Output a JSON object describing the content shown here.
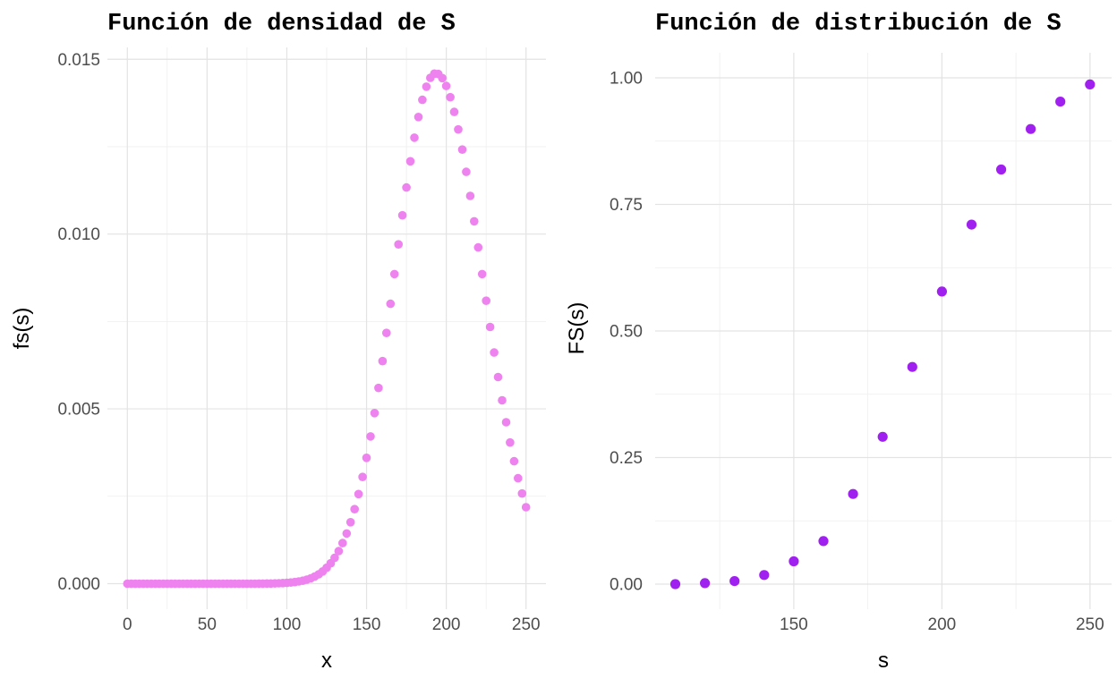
{
  "figure": {
    "background": "#ffffff",
    "grid_major_color": "#e3e3e3",
    "grid_minor_color": "#eeeeee",
    "tick_label_color": "#4d4d4d",
    "text_color": "#000000"
  },
  "chart_data": [
    {
      "type": "scatter",
      "title": "Función de densidad de S",
      "xlabel": "x",
      "ylabel": "fs(s)",
      "point_color": "#ee82ee",
      "legend": "none",
      "grid": "on",
      "x_ticks": [
        0,
        50,
        100,
        150,
        200,
        250
      ],
      "x_minor_ticks": [
        25,
        75,
        125,
        175,
        225
      ],
      "x_tick_labels": [
        "0",
        "50",
        "100",
        "150",
        "200",
        "250"
      ],
      "y_ticks": [
        0,
        0.005,
        0.01,
        0.015
      ],
      "y_minor_ticks": [
        0.0025,
        0.0075,
        0.0125
      ],
      "y_tick_labels": [
        "0.000",
        "0.005",
        "0.010",
        "0.015"
      ],
      "xlim": [
        -12.5,
        262.5
      ],
      "ylim": [
        -0.00073,
        0.01534
      ],
      "x": [
        0,
        2.5,
        5,
        7.5,
        10,
        12.5,
        15,
        17.5,
        20,
        22.5,
        25,
        27.5,
        30,
        32.5,
        35,
        37.5,
        40,
        42.5,
        45,
        47.5,
        50,
        52.5,
        55,
        57.5,
        60,
        62.5,
        65,
        67.5,
        70,
        72.5,
        75,
        77.5,
        80,
        82.5,
        85,
        87.5,
        90,
        92.5,
        95,
        97.5,
        100,
        102.5,
        105,
        107.5,
        110,
        112.5,
        115,
        117.5,
        120,
        122.5,
        125,
        127.5,
        130,
        132.5,
        135,
        137.5,
        140,
        142.5,
        145,
        147.5,
        150,
        152.5,
        155,
        157.5,
        160,
        162.5,
        165,
        167.5,
        170,
        172.5,
        175,
        177.5,
        180,
        182.5,
        185,
        187.5,
        190,
        192.5,
        195,
        197.5,
        200,
        202.5,
        205,
        207.5,
        210,
        212.5,
        215,
        217.5,
        220,
        222.5,
        225,
        227.5,
        230,
        232.5,
        235,
        237.5,
        240,
        242.5,
        245,
        247.5,
        250
      ],
      "y": [
        0,
        0,
        0,
        0,
        0,
        0,
        0,
        0,
        0,
        0,
        0,
        0,
        0,
        0,
        0,
        0,
        0,
        0,
        0,
        0,
        0,
        0,
        0,
        0,
        0,
        0,
        0,
        0,
        0,
        0,
        0,
        0,
        0,
        2e-06,
        3e-06,
        4e-06,
        5e-06,
        8e-06,
        1.1e-05,
        1.6e-05,
        2.3e-05,
        3.2e-05,
        4.5e-05,
        6.2e-05,
        8.4e-05,
        0.000114,
        0.000153,
        0.000204,
        0.000269,
        0.000351,
        0.000455,
        0.000582,
        0.00074,
        0.000931,
        0.001162,
        0.001435,
        0.001758,
        0.002132,
        0.002564,
        0.003053,
        0.0036,
        0.004212,
        0.004879,
        0.005598,
        0.006366,
        0.007172,
        0.008007,
        0.008855,
        0.009705,
        0.010537,
        0.011334,
        0.012082,
        0.012759,
        0.01335,
        0.013841,
        0.014216,
        0.014469,
        0.014589,
        0.01458,
        0.014462,
        0.014238,
        0.013914,
        0.013496,
        0.012994,
        0.012418,
        0.01178,
        0.011092,
        0.010366,
        0.009617,
        0.008855,
        0.008094,
        0.007343,
        0.006612,
        0.005911,
        0.005244,
        0.004618,
        0.004037,
        0.003503,
        0.003016,
        0.002579,
        0.002188
      ]
    },
    {
      "type": "scatter",
      "title": "Función de distribución de S",
      "xlabel": "s",
      "ylabel": "FS(s)",
      "point_color": "#a020f0",
      "legend": "none",
      "grid": "on",
      "x_ticks": [
        150,
        200,
        250
      ],
      "x_minor_ticks": [
        125,
        175,
        225
      ],
      "x_tick_labels": [
        "150",
        "200",
        "250"
      ],
      "y_ticks": [
        0,
        0.25,
        0.5,
        0.75,
        1
      ],
      "y_minor_ticks": [
        0.125,
        0.375,
        0.625,
        0.875
      ],
      "y_tick_labels": [
        "0.00",
        "0.25",
        "0.50",
        "0.75",
        "1.00"
      ],
      "xlim": [
        103.2,
        257.3
      ],
      "ylim": [
        -0.0495,
        1.0495
      ],
      "x": [
        110,
        120,
        130,
        140,
        150,
        160,
        170,
        180,
        190,
        200,
        210,
        220,
        230,
        240,
        250
      ],
      "y": [
        0.0,
        0.002,
        0.006,
        0.018,
        0.045,
        0.085,
        0.178,
        0.291,
        0.429,
        0.578,
        0.71,
        0.819,
        0.899,
        0.953,
        0.987
      ]
    }
  ]
}
